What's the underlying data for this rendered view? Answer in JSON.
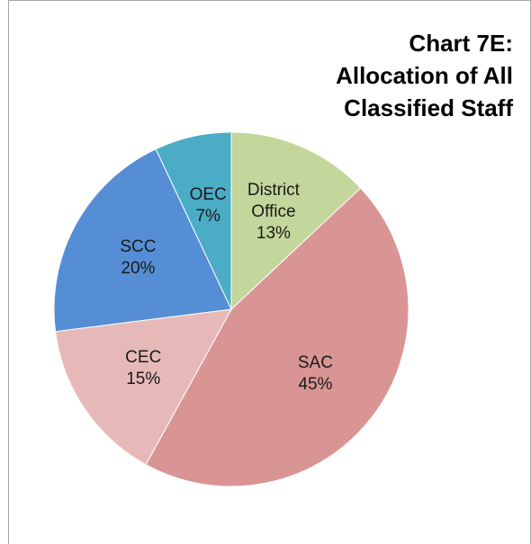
{
  "chart_data": {
    "type": "pie",
    "title": "Chart 7E: Allocation of All Classified Staff",
    "categories": [
      "District Office",
      "SAC",
      "CEC",
      "SCC",
      "OEC"
    ],
    "values": [
      13,
      45,
      15,
      20,
      7
    ],
    "value_labels": [
      "13%",
      "45%",
      "15%",
      "20%",
      "7%"
    ],
    "colors": [
      "#c3d69b",
      "#d99594",
      "#e6b9b8",
      "#558ed5",
      "#4bacc6"
    ]
  }
}
